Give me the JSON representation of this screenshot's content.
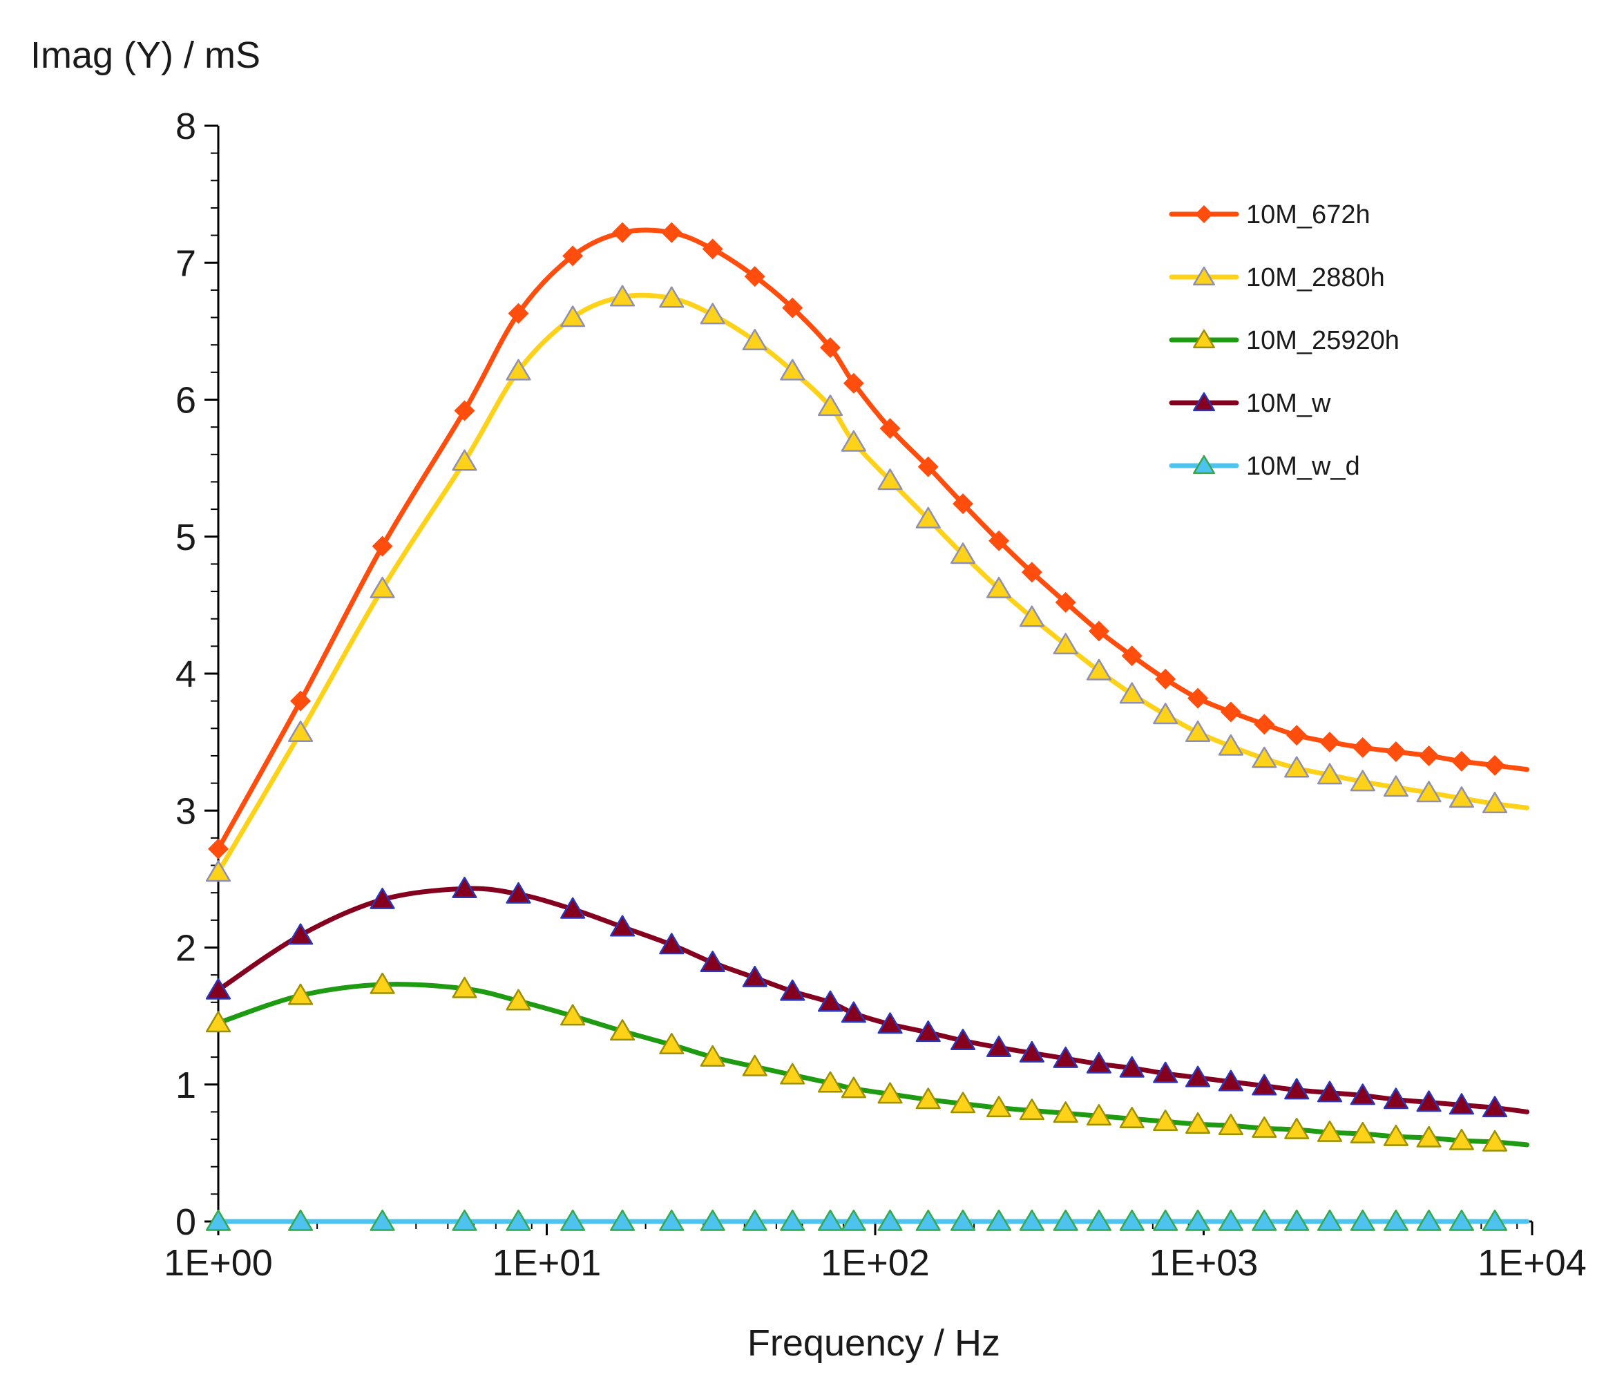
{
  "chart_data": {
    "type": "line",
    "title": "",
    "xlabel": "Frequency / Hz",
    "ylabel": "Imag (Y) / mS",
    "x_scale": "log",
    "xlim": [
      1,
      10000
    ],
    "ylim": [
      0,
      8
    ],
    "x_tick_labels": [
      "1E+00",
      "1E+01",
      "1E+02",
      "1E+03",
      "1E+04"
    ],
    "y_tick_labels": [
      "0",
      "1",
      "2",
      "3",
      "4",
      "5",
      "6",
      "7",
      "8"
    ],
    "grid": false,
    "legend_position": "top-right",
    "x": [
      1.0,
      1.78,
      3.16,
      5.62,
      8.2,
      12.0,
      17.0,
      24.0,
      32.0,
      43.0,
      56.0,
      73.0,
      86.0,
      111.0,
      145.0,
      185.0,
      238.0,
      300.0,
      380.0,
      480.0,
      605.0,
      765.0,
      960.0,
      1210.0,
      1530.0,
      1920.0,
      2420.0,
      3050.0,
      3850.0,
      4850.0,
      6100.0,
      7700.0,
      9650.0
    ],
    "series": [
      {
        "name": "10M_672h",
        "color": "#ff4d0d",
        "marker": "diamond",
        "values": [
          2.72,
          3.8,
          4.93,
          5.92,
          6.63,
          7.05,
          7.22,
          7.22,
          7.1,
          6.9,
          6.67,
          6.38,
          6.12,
          5.79,
          5.51,
          5.24,
          4.97,
          4.74,
          4.52,
          4.31,
          4.13,
          3.96,
          3.82,
          3.72,
          3.63,
          3.55,
          3.5,
          3.46,
          3.43,
          3.4,
          3.36,
          3.33,
          3.3
        ]
      },
      {
        "name": "10M_2880h",
        "color": "#ffd21a",
        "marker": "triangle",
        "values": [
          2.55,
          3.57,
          4.62,
          5.55,
          6.21,
          6.6,
          6.75,
          6.74,
          6.62,
          6.43,
          6.21,
          5.95,
          5.69,
          5.41,
          5.13,
          4.87,
          4.62,
          4.41,
          4.21,
          4.02,
          3.85,
          3.7,
          3.57,
          3.47,
          3.38,
          3.31,
          3.26,
          3.21,
          3.17,
          3.13,
          3.09,
          3.05,
          3.02
        ]
      },
      {
        "name": "10M_25920h",
        "color": "#1e9b12",
        "marker": "triangle",
        "values": [
          1.45,
          1.65,
          1.73,
          1.7,
          1.61,
          1.5,
          1.39,
          1.29,
          1.2,
          1.13,
          1.07,
          1.01,
          0.97,
          0.93,
          0.89,
          0.86,
          0.83,
          0.81,
          0.79,
          0.77,
          0.75,
          0.73,
          0.71,
          0.7,
          0.68,
          0.67,
          0.65,
          0.64,
          0.62,
          0.61,
          0.59,
          0.58,
          0.56
        ]
      },
      {
        "name": "10M_w",
        "color": "#85001e",
        "marker": "triangle",
        "values": [
          1.69,
          2.09,
          2.35,
          2.43,
          2.39,
          2.28,
          2.15,
          2.02,
          1.89,
          1.78,
          1.68,
          1.6,
          1.52,
          1.44,
          1.38,
          1.32,
          1.27,
          1.23,
          1.19,
          1.15,
          1.12,
          1.08,
          1.05,
          1.02,
          0.99,
          0.96,
          0.94,
          0.92,
          0.89,
          0.87,
          0.85,
          0.83,
          0.8
        ]
      },
      {
        "name": "10M_w_d",
        "color": "#4fc3ef",
        "marker": "triangle",
        "values": [
          0,
          0,
          0,
          0,
          0,
          0,
          0,
          0,
          0,
          0,
          0,
          0,
          0,
          0,
          0,
          0,
          0,
          0,
          0,
          0,
          0,
          0,
          0,
          0,
          0,
          0,
          0,
          0,
          0,
          0,
          0,
          0,
          0
        ]
      }
    ]
  }
}
